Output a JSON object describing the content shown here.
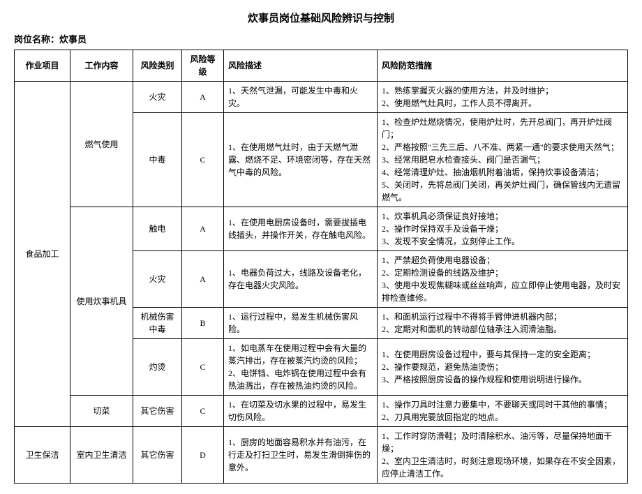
{
  "title": "炊事员岗位基础风险辨识与控制",
  "subtitle": "岗位名称：炊事员",
  "headers": {
    "project": "作业项目",
    "work": "工作内容",
    "type": "风险类别",
    "level": "风险等级",
    "desc": "风险描述",
    "prevent": "风险防范措施"
  },
  "rows": [
    {
      "project": "食品加工",
      "project_rowspan": 7,
      "work": "燃气使用",
      "work_rowspan": 2,
      "type": "火灾",
      "level": "A",
      "desc": "1、天然气泄漏，可能发生中毒和火灾。",
      "prevent": "1、熟练掌握灭火器的使用方法，并及时维护；\n2、使用燃气灶具时，工作人员不得离开。"
    },
    {
      "type": "中毒",
      "level": "C",
      "desc": "1、在使用燃气灶时，由于天燃气泄露、燃烧不足、环境密闭等，存在天然气中毒的风险。",
      "prevent": "1、检查炉灶燃烧情况，使用炉灶时，先开总阀门，再开炉灶阀门；\n2、严格按照\"三先三后、八不准、两紧一通\"的要求使用天然气；\n3、经常用肥皂水检查接头、阀门是否漏气；\n4、经常清理炉灶、抽油烟机附着油垢，保持炊事设备清洁；\n5、关闭时，先将总阀门关闭，再关炉灶阀门，确保管线内无遗留燃气。"
    },
    {
      "work": "使用炊事机具",
      "work_rowspan": 4,
      "type": "触电",
      "level": "A",
      "desc": "1、在使用电厨房设备时，需要拔插电线插头，并操作开关，存在触电风险。",
      "prevent": "1、炊事机具必须保证良好接地；\n2、操作时保持双手及设备干燥；\n3、发现不安全情况，立刻停止工作。"
    },
    {
      "type": "火灾",
      "level": "A",
      "desc": "1、电器负荷过大，线路及设备老化，存在电器火灾风险。",
      "prevent": "1、严禁超负荷使用电器设备；\n2、定期检测设备的线路及维护；\n3、使用中发现焦糊味或丝丝响声，应立即停止使用电器，及时安排检查维修。"
    },
    {
      "type": "机械伤害\n中毒",
      "level": "B",
      "desc": "1、运行过程中，易发生机械伤害风险。",
      "prevent": "1、和面机运行过程中不得将手臂伸进机器内部；\n2、定期对和面机的转动部位轴承注入润滑油脂。"
    },
    {
      "type": "灼烫",
      "level": "C",
      "desc": "1、如电蒸车在使用过程中会有大量的蒸汽排出，存在被蒸汽灼烫的风险；\n2、电饼铛、电炸锅在使用过程中会有热油溅出，存在被热油灼烫的风险。",
      "prevent": "1、在使用厨房设备过程中，要与其保持一定的安全距离；\n2、操作要规范，避免热油烫伤；\n3、严格按照厨房设备的操作规程和使用说明进行操作。"
    },
    {
      "work": "切菜",
      "work_rowspan": 1,
      "type": "其它伤害",
      "level": "C",
      "desc": "1、在切菜及切水果的过程中，易发生切伤风险。",
      "prevent": "1、操作刀具时注意力要集中，不要聊天或同时干其他的事情；\n2、刀具用完要放回指定的地点。"
    },
    {
      "project": "卫生保洁",
      "project_rowspan": 1,
      "work": "室内卫生清洁",
      "work_rowspan": 1,
      "type": "其它伤害",
      "level": "D",
      "desc": "1、厨房的地面容易积水并有油污，在行走及打扫卫生时，易发生滑倒摔伤的意外。",
      "prevent": "1、工作时穿防滑鞋；及时清除积水、油污等，尽量保持地面干燥；\n2、室内卫生清洁时，时刻注意现场环境，如果存在不安全因素，应停止清洁工作。"
    }
  ]
}
